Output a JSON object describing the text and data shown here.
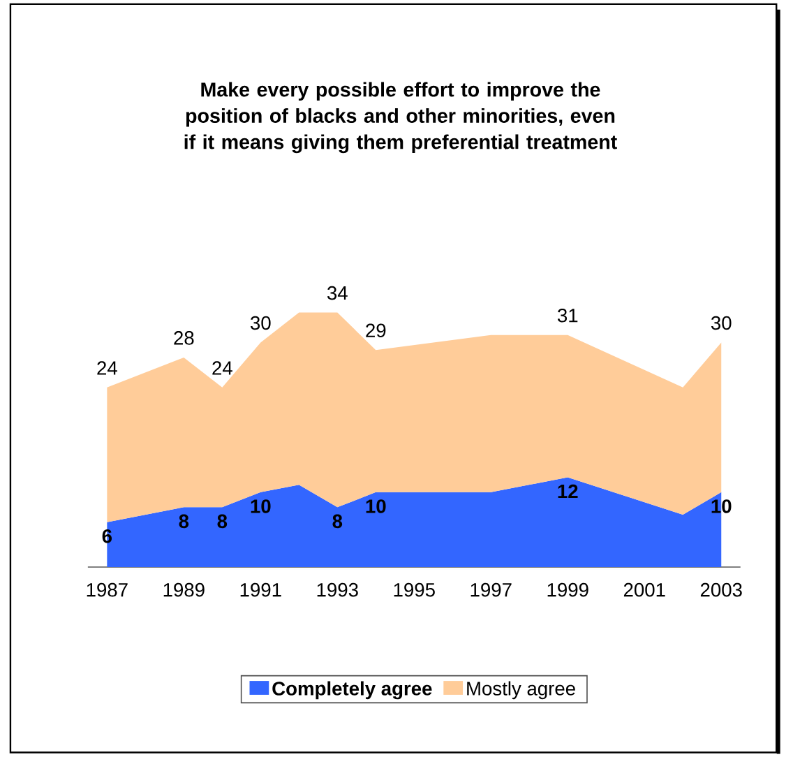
{
  "chart_data": {
    "type": "area",
    "title": "Make every possible effort to improve the position of blacks and other minorities, even if it means giving them preferential treatment",
    "x": [
      1987,
      1989,
      1990,
      1991,
      1992,
      1993,
      1994,
      1997,
      1999,
      2002,
      2003
    ],
    "series": [
      {
        "name": "Completely agree",
        "color": "#3366ff",
        "values": [
          6,
          8,
          8,
          10,
          11,
          8,
          10,
          10,
          12,
          7,
          10
        ],
        "value_labels": [
          "6",
          "8",
          "8",
          "10",
          null,
          "8",
          "10",
          null,
          "12",
          null,
          "10"
        ]
      },
      {
        "name": "Mostly agree",
        "color": "#ffcc99",
        "values": [
          24,
          28,
          24,
          30,
          34,
          34,
          29,
          31,
          31,
          24,
          30
        ],
        "value_labels": [
          "24",
          "28",
          "24",
          "30",
          null,
          "34",
          "29",
          null,
          "31",
          null,
          "30"
        ]
      }
    ],
    "xlim": [
      1986.5,
      2003.5
    ],
    "xticks": [
      1987,
      1989,
      1991,
      1993,
      1995,
      1997,
      1999,
      2001,
      2003
    ],
    "tick_labels": "x",
    "legend": "bottom"
  }
}
